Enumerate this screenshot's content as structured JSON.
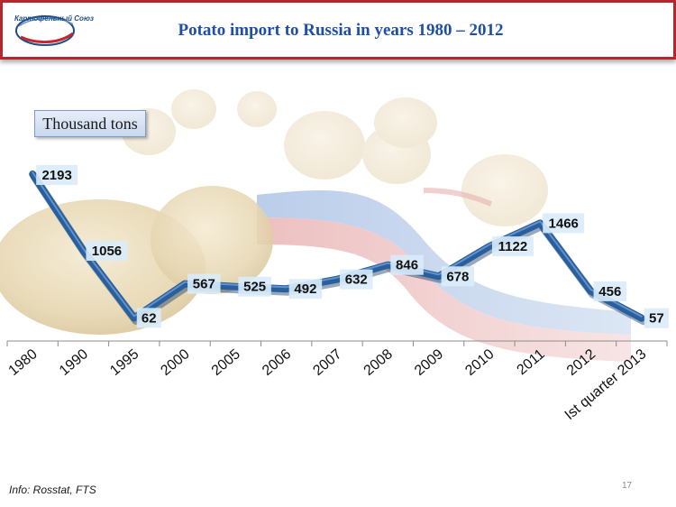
{
  "header": {
    "title": "Potato import to Russia in years 1980 – 2012",
    "logo_text": "Картофельный Союз"
  },
  "unit_label": "Thousand tons",
  "footer": {
    "source": "Info: Rosstat, FTS",
    "page_number": "17"
  },
  "colors": {
    "line": "#2a5f9e",
    "label_bg": "#d9ecf9",
    "title": "#1f4ea8",
    "frame": "#b5272c"
  },
  "chart_data": {
    "type": "line",
    "title": "Potato import to Russia in years 1980 – 2012",
    "xlabel": "",
    "ylabel": "Thousand tons",
    "categories": [
      "1980",
      "1990",
      "1995",
      "2000",
      "2005",
      "2006",
      "2007",
      "2008",
      "2009",
      "2010",
      "2011",
      "2012",
      "Ist quarter 2013"
    ],
    "series": [
      {
        "values": [
          2193,
          1056,
          62,
          567,
          525,
          492,
          632,
          846,
          678,
          1122,
          1466,
          456,
          57
        ]
      }
    ],
    "data_labels": [
      "2193",
      "1056",
      "62",
      "567",
      "525",
      "492",
      "632",
      "846",
      "678",
      "1122",
      "1466",
      "456",
      "57"
    ],
    "ylim": [
      0,
      2300
    ],
    "grid": false,
    "legend": "none"
  }
}
